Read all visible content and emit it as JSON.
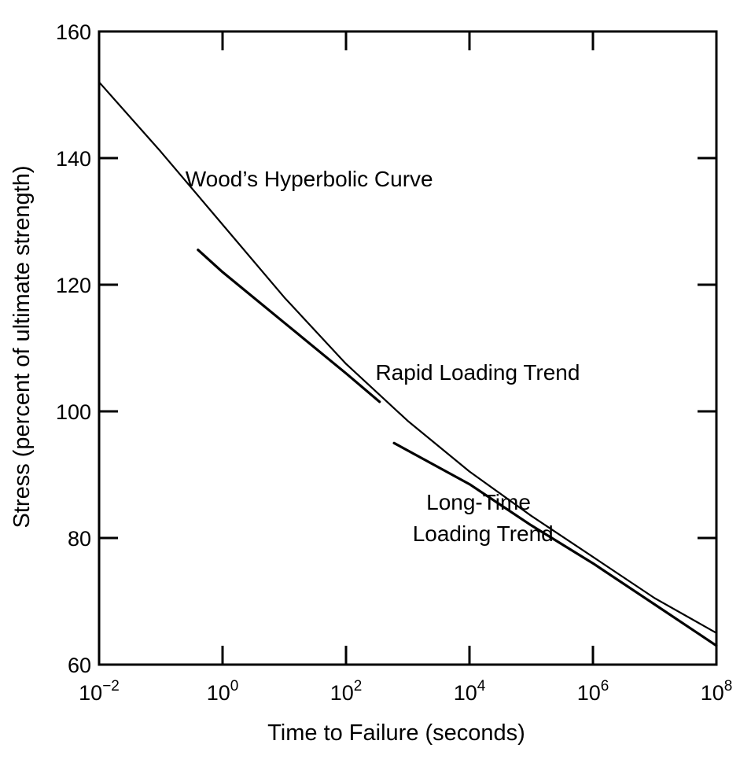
{
  "chart_data": {
    "type": "line",
    "title": "",
    "xlabel": "Time to Failure (seconds)",
    "ylabel": "Stress (percent of ultimate strength)",
    "x_scale": "log",
    "xlim": [
      0.01,
      100000000
    ],
    "ylim": [
      60,
      160
    ],
    "x_ticks": [
      {
        "value": 0.01,
        "base": "10",
        "exp": "−2"
      },
      {
        "value": 1,
        "base": "10",
        "exp": "0"
      },
      {
        "value": 100,
        "base": "10",
        "exp": "2"
      },
      {
        "value": 10000,
        "base": "10",
        "exp": "4"
      },
      {
        "value": 1000000,
        "base": "10",
        "exp": "6"
      },
      {
        "value": 100000000,
        "base": "10",
        "exp": "8"
      }
    ],
    "y_ticks": [
      60,
      80,
      100,
      120,
      140,
      160
    ],
    "grid": false,
    "series": [
      {
        "name": "Wood’s Hyperbolic Curve",
        "x": [
          0.01,
          0.1,
          1,
          10,
          100,
          1000,
          10000,
          100000,
          1000000,
          10000000,
          100000000
        ],
        "y": [
          152,
          141,
          129.5,
          118,
          107.5,
          98.5,
          90.5,
          83.5,
          77,
          70.5,
          65
        ]
      },
      {
        "name": "Rapid Loading Trend",
        "x": [
          0.4,
          1,
          10,
          100,
          350
        ],
        "y": [
          125.5,
          122,
          114,
          106,
          101.5
        ]
      },
      {
        "name": "Long-Time Loading Trend",
        "x": [
          600,
          10000,
          100000,
          1000000,
          10000000,
          100000000
        ],
        "y": [
          95,
          88.5,
          82,
          76,
          69.5,
          63
        ]
      }
    ],
    "annotations": [
      {
        "text": "Wood’s Hyperbolic Curve",
        "x": 0.25,
        "y": 135.5
      },
      {
        "text": "Rapid Loading Trend",
        "x": 300,
        "y": 105
      },
      {
        "text": "Long-Time",
        "x": 2000,
        "y": 84.5
      },
      {
        "text": "Loading Trend",
        "x": 1200,
        "y": 79.5
      }
    ]
  }
}
